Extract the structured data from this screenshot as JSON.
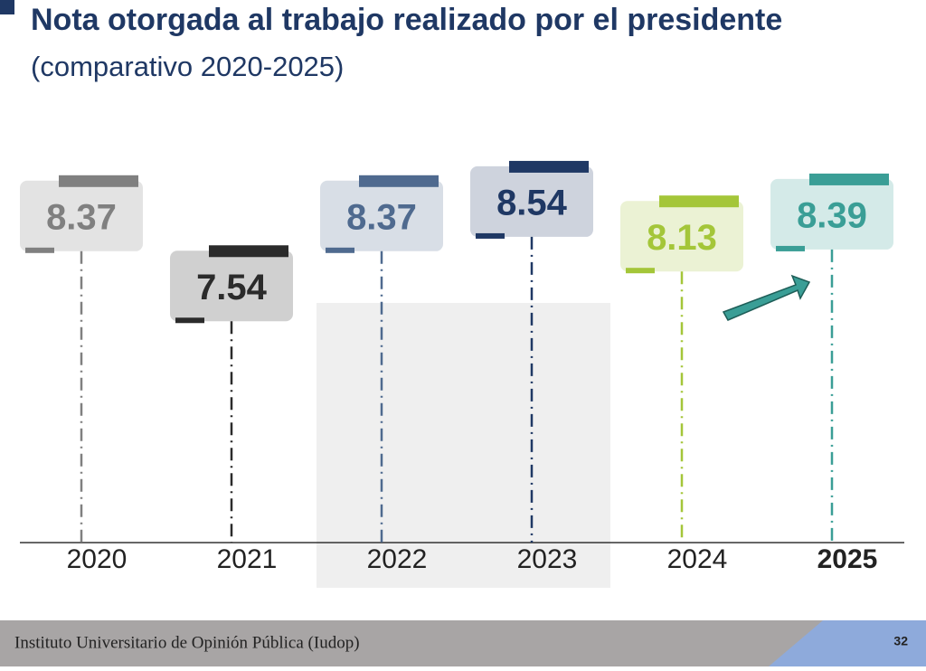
{
  "chart_data": {
    "type": "lollipop",
    "title": "Nota otorgada al trabajo realizado por el presidente",
    "subtitle": "(comparativo 2020-2025)",
    "categories": [
      "2020",
      "2021",
      "2022",
      "2023",
      "2024",
      "2025"
    ],
    "values": [
      8.37,
      7.54,
      8.37,
      8.54,
      8.13,
      8.39
    ],
    "colors": [
      "#808080",
      "#2b2b2b",
      "#4f6a8f",
      "#1f3864",
      "#a4c639",
      "#3a9e96"
    ],
    "ylim": [
      4.5,
      9
    ]
  },
  "footer": {
    "text": "Instituto Universitario de Opinión Pública (Iudop)",
    "page": "32"
  }
}
